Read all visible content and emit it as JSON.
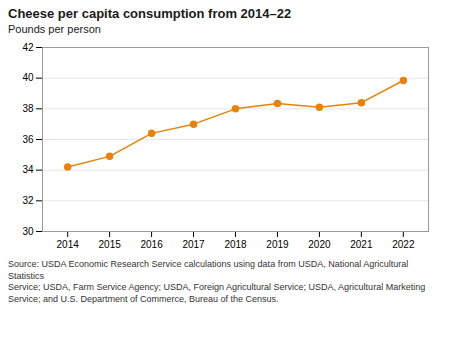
{
  "chart_data": {
    "type": "line",
    "title": "Cheese per capita consumption from 2014–22",
    "subtitle": "Pounds per person",
    "source": "Source: USDA Economic Research Service calculations using data from USDA, National Agricultural Statistics\nService; USDA, Farm Service Agency; USDA, Foreign Agricultural Service; USDA, Agricultural Marketing\nService; and U.S. Department of Commerce, Bureau of the Census.",
    "x": [
      2014,
      2015,
      2016,
      2017,
      2018,
      2019,
      2020,
      2021,
      2022
    ],
    "values": [
      34.2,
      34.9,
      36.4,
      37.0,
      38.0,
      38.35,
      38.1,
      38.4,
      39.85
    ],
    "color": "#E8820C",
    "marker": "circle",
    "xlim": [
      2013.4,
      2022.6
    ],
    "xticks": [
      2014,
      2015,
      2016,
      2017,
      2018,
      2019,
      2020,
      2021,
      2022
    ],
    "ylim": [
      30,
      42
    ],
    "yticks": [
      30,
      32,
      34,
      36,
      38,
      40,
      42
    ],
    "grid": true
  }
}
